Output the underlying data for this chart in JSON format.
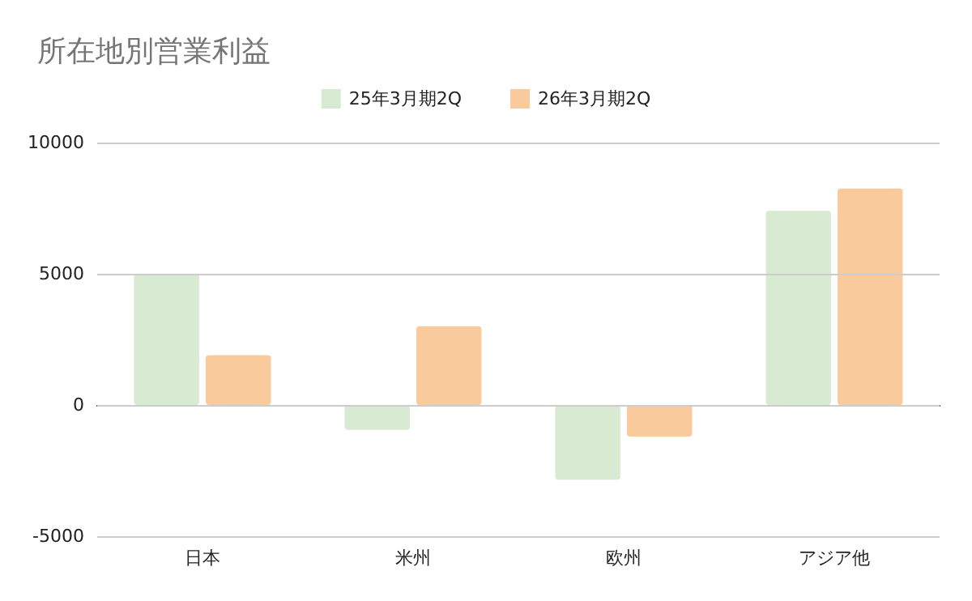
{
  "chart_data": {
    "type": "bar",
    "title": "所在地別営業利益",
    "categories": [
      "日本",
      "米州",
      "欧州",
      "アジア他"
    ],
    "series": [
      {
        "name": "25年3月期2Q",
        "color": "#d9ead3",
        "values": [
          5000,
          -950,
          -2850,
          7400
        ]
      },
      {
        "name": "26年3月期2Q",
        "color": "#f9cb9c",
        "values": [
          1900,
          3000,
          -1200,
          8250
        ]
      }
    ],
    "ylim": [
      -5000,
      10000
    ],
    "yticks": [
      -5000,
      0,
      5000,
      10000
    ],
    "grid": true,
    "legend": "top"
  }
}
